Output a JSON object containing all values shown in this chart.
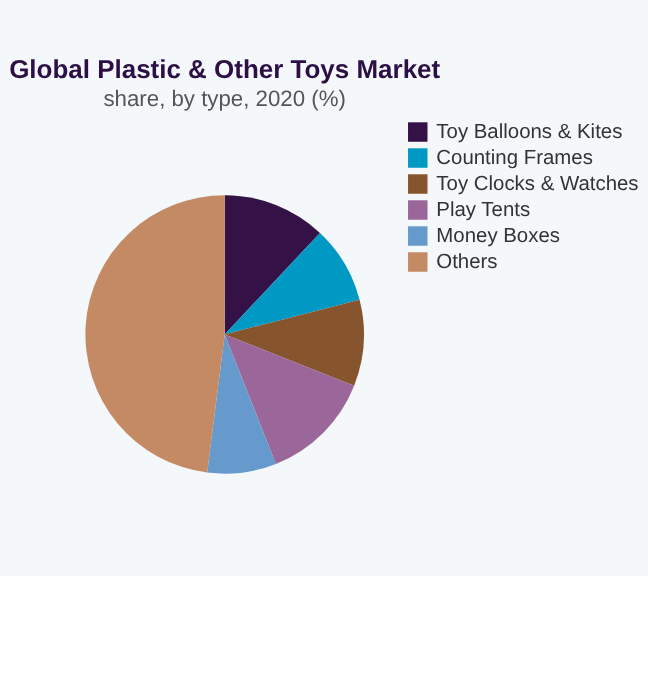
{
  "chart_data": {
    "type": "pie",
    "title": "Global Plastic & Other Toys Market",
    "subtitle": "share, by type, 2020 (%)",
    "categories": [
      "Toy Balloons & Kites",
      "Counting Frames",
      "Toy Clocks & Watches",
      "Play Tents",
      "Money Boxes",
      "Others"
    ],
    "values": [
      12,
      9,
      10,
      13,
      8,
      48
    ],
    "colors": [
      "#341146",
      "#0099c4",
      "#86552e",
      "#9b6699",
      "#6699cc",
      "#c48a64"
    ],
    "legend": "right"
  }
}
